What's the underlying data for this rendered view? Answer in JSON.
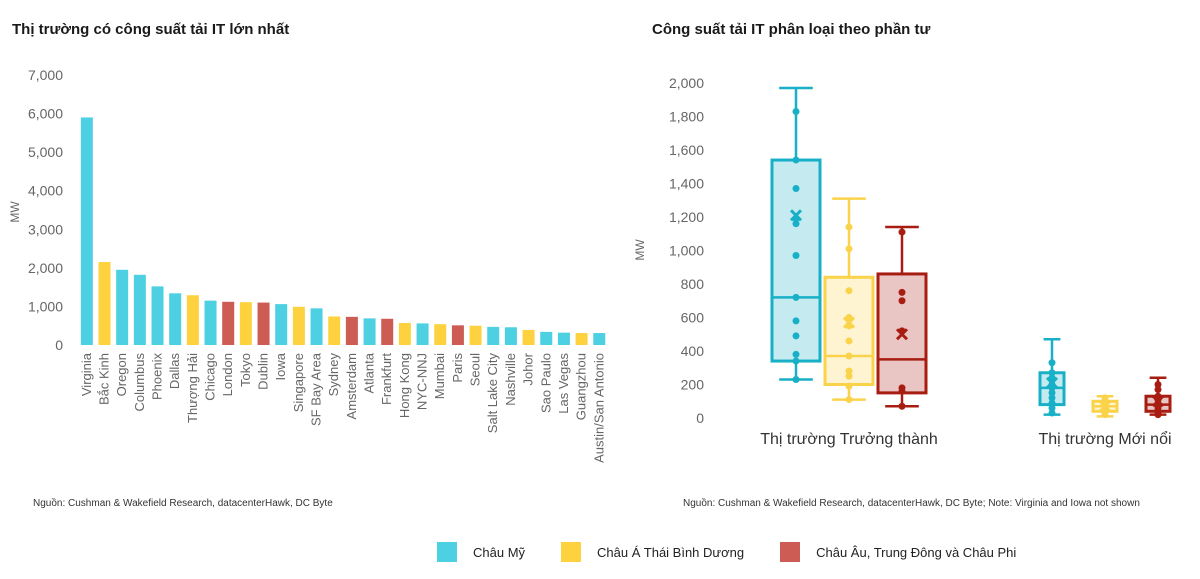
{
  "colors": {
    "americas": "#4dd0e1",
    "apac": "#fdd23e",
    "emea": "#cd5c55",
    "box_americas": "#17b0c7",
    "box_apac": "#fbd34a",
    "box_emea": "#a81d12",
    "axis_text": "#666666"
  },
  "legend": [
    {
      "key": "americas",
      "label": "Châu Mỹ"
    },
    {
      "key": "apac",
      "label": "Châu Á Thái Bình Dương"
    },
    {
      "key": "emea",
      "label": "Châu Âu, Trung Đông và Châu Phi"
    }
  ],
  "left_chart": {
    "title": "Thị trường có công suất tải IT lớn nhất",
    "source": "Nguồn: Cushman & Wakefield Research, datacenterHawk, DC Byte"
  },
  "right_chart": {
    "title": "Công suất tải IT phân loại theo phần tư",
    "source": "Nguồn: Cushman & Wakefield Research, datacenterHawk, DC Byte; Note: Virginia and Iowa not shown"
  },
  "chart_data": [
    {
      "type": "bar",
      "title": "Thị trường có công suất tải IT lớn nhất",
      "ylabel": "MW",
      "ylim": [
        0,
        7000
      ],
      "yticks": [
        0,
        1000,
        2000,
        3000,
        4000,
        5000,
        6000,
        7000
      ],
      "ytick_labels": [
        "0",
        "1,000",
        "2,000",
        "3,000",
        "4,000",
        "5,000",
        "6,000",
        "7,000"
      ],
      "grid": false,
      "categories": [
        "Virginia",
        "Bắc Kinh",
        "Oregon",
        "Columbus",
        "Phoenix",
        "Dallas",
        "Thượng Hải",
        "Chicago",
        "London",
        "Tokyo",
        "Dublin",
        "Iowa",
        "Singapore",
        "SF Bay Area",
        "Sydney",
        "Amsterdam",
        "Atlanta",
        "Frankfurt",
        "Hong Kong",
        "NYC-NNJ",
        "Mumbai",
        "Paris",
        "Seoul",
        "Salt Lake City",
        "Nashville",
        "Johor",
        "Sao Paulo",
        "Las Vegas",
        "Guangzhou",
        "Austin/San Antonio"
      ],
      "values": [
        5900,
        2150,
        1950,
        1820,
        1520,
        1340,
        1290,
        1150,
        1120,
        1110,
        1100,
        1060,
        990,
        950,
        740,
        730,
        690,
        680,
        570,
        560,
        540,
        510,
        500,
        470,
        460,
        390,
        340,
        320,
        310,
        310
      ],
      "regions": [
        "americas",
        "apac",
        "americas",
        "americas",
        "americas",
        "americas",
        "apac",
        "americas",
        "emea",
        "apac",
        "emea",
        "americas",
        "apac",
        "americas",
        "apac",
        "emea",
        "americas",
        "emea",
        "apac",
        "americas",
        "apac",
        "emea",
        "apac",
        "americas",
        "americas",
        "apac",
        "americas",
        "americas",
        "apac",
        "americas"
      ]
    },
    {
      "type": "box",
      "title": "Công suất tải IT phân loại theo phần tư",
      "ylabel": "MW",
      "ylim": [
        0,
        2000
      ],
      "yticks": [
        0,
        200,
        400,
        600,
        800,
        1000,
        1200,
        1400,
        1600,
        1800,
        2000
      ],
      "ytick_labels": [
        "0",
        "200",
        "400",
        "600",
        "800",
        "1,000",
        "1,200",
        "1,400",
        "1,600",
        "1,800",
        "2,000"
      ],
      "grid": false,
      "categories": [
        "Thị trường Trưởng thành",
        "Thị trường Mới nổi"
      ],
      "series": [
        {
          "name": "Châu Mỹ",
          "key": "americas",
          "boxes": [
            {
              "whisker_low": 230,
              "q1": 340,
              "median": 720,
              "q3": 1540,
              "whisker_high": 1970,
              "mean": 1210,
              "points": [
                1830,
                1540,
                1370,
                1190,
                1160,
                970,
                720,
                580,
                490,
                380,
                340,
                230
              ]
            },
            {
              "whisker_low": 20,
              "q1": 80,
              "median": 180,
              "q3": 270,
              "whisker_high": 470,
              "mean": 210,
              "points": [
                330,
                270,
                240,
                200,
                180,
                150,
                120,
                90,
                60,
                30
              ]
            }
          ]
        },
        {
          "name": "Châu Á Thái Bình Dương",
          "key": "apac",
          "boxes": [
            {
              "whisker_low": 110,
              "q1": 200,
              "median": 370,
              "q3": 840,
              "whisker_high": 1310,
              "mean": 570,
              "points": [
                1140,
                1010,
                760,
                600,
                550,
                460,
                370,
                280,
                250,
                190,
                110
              ]
            },
            {
              "whisker_low": 10,
              "q1": 40,
              "median": 70,
              "q3": 100,
              "whisker_high": 130,
              "mean": 70,
              "points": [
                120,
                100,
                80,
                60,
                40,
                20
              ]
            }
          ]
        },
        {
          "name": "Châu Âu, Trung Đông và Châu Phi",
          "key": "emea",
          "boxes": [
            {
              "whisker_low": 70,
              "q1": 150,
              "median": 350,
              "q3": 860,
              "whisker_high": 1140,
              "mean": 500,
              "points": [
                1110,
                750,
                700,
                520,
                180,
                160,
                70
              ]
            },
            {
              "whisker_low": 20,
              "q1": 40,
              "median": 80,
              "q3": 130,
              "whisker_high": 240,
              "mean": 100,
              "points": [
                200,
                170,
                130,
                110,
                90,
                80,
                60,
                40,
                30,
                20
              ]
            }
          ]
        }
      ]
    }
  ]
}
